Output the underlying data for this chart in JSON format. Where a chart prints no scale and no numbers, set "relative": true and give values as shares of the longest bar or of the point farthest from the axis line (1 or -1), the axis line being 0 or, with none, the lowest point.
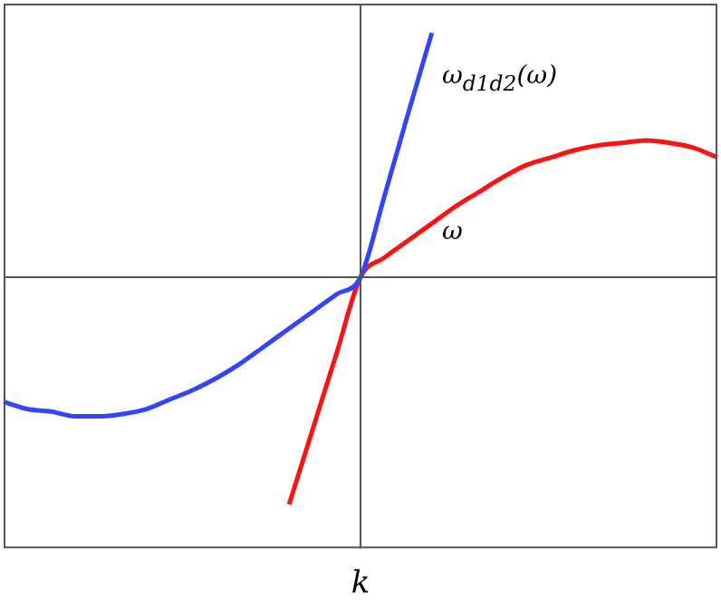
{
  "chart_data": {
    "type": "line",
    "relative": true,
    "xlabel": "k",
    "legend": false,
    "grid": false,
    "marker": "none",
    "line_style": "solid",
    "categories": [
      null,
      null,
      null,
      null,
      null,
      null,
      null,
      null,
      null,
      null,
      null,
      null,
      null,
      null,
      null,
      null,
      null,
      null,
      null,
      null,
      null,
      null,
      null,
      null,
      null,
      null,
      null,
      null,
      null,
      null,
      null
    ],
    "series": [
      {
        "color": "#3344ff",
        "values": [
          -0.51,
          -0.54,
          -0.55,
          -0.57,
          -0.57,
          -0.56,
          -0.54,
          -0.5,
          -0.46,
          -0.41,
          -0.35,
          -0.28,
          -0.21,
          -0.14,
          -0.07,
          0,
          0.33,
          0.67,
          1,
          null,
          null,
          null,
          null,
          null,
          null,
          null,
          null,
          null,
          null,
          null,
          null
        ]
      },
      {
        "color": "#ff1111",
        "values": [
          null,
          null,
          null,
          null,
          null,
          null,
          null,
          null,
          null,
          null,
          null,
          null,
          -0.93,
          -0.62,
          -0.31,
          0,
          0.08,
          0.15,
          0.22,
          0.29,
          0.35,
          0.41,
          0.46,
          0.49,
          0.52,
          0.54,
          0.55,
          0.56,
          0.55,
          0.53,
          0.49
        ]
      }
    ],
    "annotations": [
      "ω$_{d1d2}$(ω)",
      "ω"
    ]
  }
}
